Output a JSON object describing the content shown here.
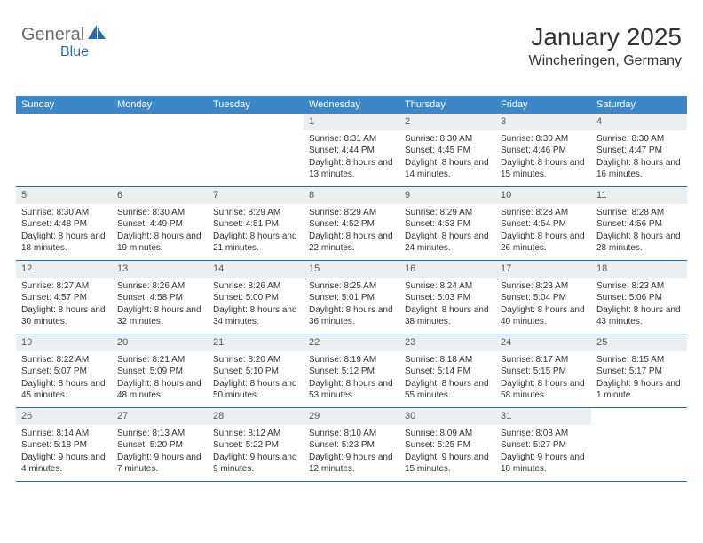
{
  "brand": {
    "part1": "General",
    "part2": "Blue"
  },
  "title": "January 2025",
  "location": "Wincheringen, Germany",
  "colors": {
    "header_bg": "#3b87c8",
    "header_text": "#ffffff",
    "daynum_bg": "#eceff2",
    "divider": "#2d6aa3",
    "brand_gray": "#6b6b6b",
    "brand_blue": "#2d6aa3",
    "text": "#333333",
    "background": "#ffffff"
  },
  "fonts": {
    "title_size": 28,
    "location_size": 16,
    "header_size": 11,
    "daynum_size": 11,
    "body_size": 10
  },
  "weekdays": [
    "Sunday",
    "Monday",
    "Tuesday",
    "Wednesday",
    "Thursday",
    "Friday",
    "Saturday"
  ],
  "weeks": [
    [
      {
        "day": "",
        "sunrise": "",
        "sunset": "",
        "daylight": ""
      },
      {
        "day": "",
        "sunrise": "",
        "sunset": "",
        "daylight": ""
      },
      {
        "day": "",
        "sunrise": "",
        "sunset": "",
        "daylight": ""
      },
      {
        "day": "1",
        "sunrise": "Sunrise: 8:31 AM",
        "sunset": "Sunset: 4:44 PM",
        "daylight": "Daylight: 8 hours and 13 minutes."
      },
      {
        "day": "2",
        "sunrise": "Sunrise: 8:30 AM",
        "sunset": "Sunset: 4:45 PM",
        "daylight": "Daylight: 8 hours and 14 minutes."
      },
      {
        "day": "3",
        "sunrise": "Sunrise: 8:30 AM",
        "sunset": "Sunset: 4:46 PM",
        "daylight": "Daylight: 8 hours and 15 minutes."
      },
      {
        "day": "4",
        "sunrise": "Sunrise: 8:30 AM",
        "sunset": "Sunset: 4:47 PM",
        "daylight": "Daylight: 8 hours and 16 minutes."
      }
    ],
    [
      {
        "day": "5",
        "sunrise": "Sunrise: 8:30 AM",
        "sunset": "Sunset: 4:48 PM",
        "daylight": "Daylight: 8 hours and 18 minutes."
      },
      {
        "day": "6",
        "sunrise": "Sunrise: 8:30 AM",
        "sunset": "Sunset: 4:49 PM",
        "daylight": "Daylight: 8 hours and 19 minutes."
      },
      {
        "day": "7",
        "sunrise": "Sunrise: 8:29 AM",
        "sunset": "Sunset: 4:51 PM",
        "daylight": "Daylight: 8 hours and 21 minutes."
      },
      {
        "day": "8",
        "sunrise": "Sunrise: 8:29 AM",
        "sunset": "Sunset: 4:52 PM",
        "daylight": "Daylight: 8 hours and 22 minutes."
      },
      {
        "day": "9",
        "sunrise": "Sunrise: 8:29 AM",
        "sunset": "Sunset: 4:53 PM",
        "daylight": "Daylight: 8 hours and 24 minutes."
      },
      {
        "day": "10",
        "sunrise": "Sunrise: 8:28 AM",
        "sunset": "Sunset: 4:54 PM",
        "daylight": "Daylight: 8 hours and 26 minutes."
      },
      {
        "day": "11",
        "sunrise": "Sunrise: 8:28 AM",
        "sunset": "Sunset: 4:56 PM",
        "daylight": "Daylight: 8 hours and 28 minutes."
      }
    ],
    [
      {
        "day": "12",
        "sunrise": "Sunrise: 8:27 AM",
        "sunset": "Sunset: 4:57 PM",
        "daylight": "Daylight: 8 hours and 30 minutes."
      },
      {
        "day": "13",
        "sunrise": "Sunrise: 8:26 AM",
        "sunset": "Sunset: 4:58 PM",
        "daylight": "Daylight: 8 hours and 32 minutes."
      },
      {
        "day": "14",
        "sunrise": "Sunrise: 8:26 AM",
        "sunset": "Sunset: 5:00 PM",
        "daylight": "Daylight: 8 hours and 34 minutes."
      },
      {
        "day": "15",
        "sunrise": "Sunrise: 8:25 AM",
        "sunset": "Sunset: 5:01 PM",
        "daylight": "Daylight: 8 hours and 36 minutes."
      },
      {
        "day": "16",
        "sunrise": "Sunrise: 8:24 AM",
        "sunset": "Sunset: 5:03 PM",
        "daylight": "Daylight: 8 hours and 38 minutes."
      },
      {
        "day": "17",
        "sunrise": "Sunrise: 8:23 AM",
        "sunset": "Sunset: 5:04 PM",
        "daylight": "Daylight: 8 hours and 40 minutes."
      },
      {
        "day": "18",
        "sunrise": "Sunrise: 8:23 AM",
        "sunset": "Sunset: 5:06 PM",
        "daylight": "Daylight: 8 hours and 43 minutes."
      }
    ],
    [
      {
        "day": "19",
        "sunrise": "Sunrise: 8:22 AM",
        "sunset": "Sunset: 5:07 PM",
        "daylight": "Daylight: 8 hours and 45 minutes."
      },
      {
        "day": "20",
        "sunrise": "Sunrise: 8:21 AM",
        "sunset": "Sunset: 5:09 PM",
        "daylight": "Daylight: 8 hours and 48 minutes."
      },
      {
        "day": "21",
        "sunrise": "Sunrise: 8:20 AM",
        "sunset": "Sunset: 5:10 PM",
        "daylight": "Daylight: 8 hours and 50 minutes."
      },
      {
        "day": "22",
        "sunrise": "Sunrise: 8:19 AM",
        "sunset": "Sunset: 5:12 PM",
        "daylight": "Daylight: 8 hours and 53 minutes."
      },
      {
        "day": "23",
        "sunrise": "Sunrise: 8:18 AM",
        "sunset": "Sunset: 5:14 PM",
        "daylight": "Daylight: 8 hours and 55 minutes."
      },
      {
        "day": "24",
        "sunrise": "Sunrise: 8:17 AM",
        "sunset": "Sunset: 5:15 PM",
        "daylight": "Daylight: 8 hours and 58 minutes."
      },
      {
        "day": "25",
        "sunrise": "Sunrise: 8:15 AM",
        "sunset": "Sunset: 5:17 PM",
        "daylight": "Daylight: 9 hours and 1 minute."
      }
    ],
    [
      {
        "day": "26",
        "sunrise": "Sunrise: 8:14 AM",
        "sunset": "Sunset: 5:18 PM",
        "daylight": "Daylight: 9 hours and 4 minutes."
      },
      {
        "day": "27",
        "sunrise": "Sunrise: 8:13 AM",
        "sunset": "Sunset: 5:20 PM",
        "daylight": "Daylight: 9 hours and 7 minutes."
      },
      {
        "day": "28",
        "sunrise": "Sunrise: 8:12 AM",
        "sunset": "Sunset: 5:22 PM",
        "daylight": "Daylight: 9 hours and 9 minutes."
      },
      {
        "day": "29",
        "sunrise": "Sunrise: 8:10 AM",
        "sunset": "Sunset: 5:23 PM",
        "daylight": "Daylight: 9 hours and 12 minutes."
      },
      {
        "day": "30",
        "sunrise": "Sunrise: 8:09 AM",
        "sunset": "Sunset: 5:25 PM",
        "daylight": "Daylight: 9 hours and 15 minutes."
      },
      {
        "day": "31",
        "sunrise": "Sunrise: 8:08 AM",
        "sunset": "Sunset: 5:27 PM",
        "daylight": "Daylight: 9 hours and 18 minutes."
      },
      {
        "day": "",
        "sunrise": "",
        "sunset": "",
        "daylight": ""
      }
    ]
  ]
}
